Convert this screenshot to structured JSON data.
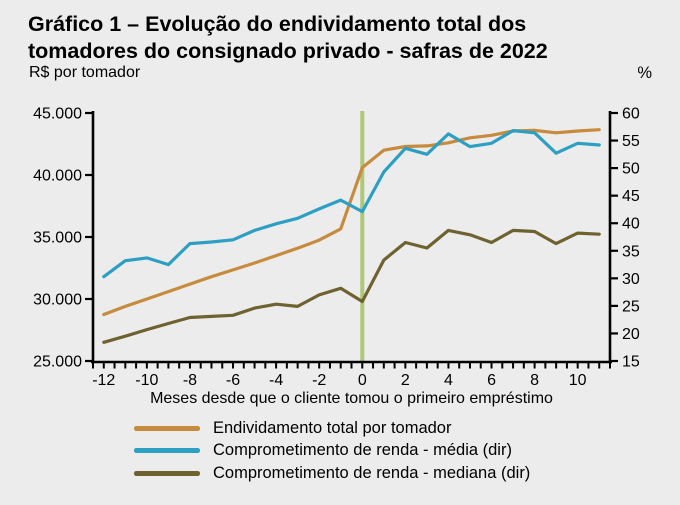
{
  "title_line1": "Gráfico 1 – Evolução do endividamento total dos",
  "title_line2": "tomadores do consignado privado - safras de 2022",
  "unit_left": "R$ por tomador",
  "unit_right": "%",
  "x_axis_title": "Meses desde que o cliente tomou o primeiro empréstimo",
  "colors": {
    "background": "#ececec",
    "axis": "#000000",
    "origin_line": "#acc878"
  },
  "chart_data": {
    "type": "line",
    "x": [
      -12,
      -11,
      -10,
      -9,
      -8,
      -7,
      -6,
      -5,
      -4,
      -3,
      -2,
      -1,
      0,
      1,
      2,
      3,
      4,
      5,
      6,
      7,
      8,
      9,
      10,
      11
    ],
    "series": [
      {
        "name": "Endividamento total por tomador",
        "axis": "left",
        "color": "#c78b3d",
        "values": [
          28750,
          29400,
          30000,
          30600,
          31200,
          31800,
          32350,
          32900,
          33500,
          34100,
          34750,
          35650,
          40600,
          42000,
          42300,
          42350,
          42600,
          43000,
          43200,
          43550,
          43600,
          43400,
          43550,
          43650
        ]
      },
      {
        "name": "Comprometimento de renda - média (dir)",
        "axis": "right",
        "color": "#2d9fc3",
        "values": [
          30.3,
          33.2,
          33.7,
          32.5,
          36.3,
          36.6,
          37.0,
          38.7,
          39.9,
          40.9,
          42.6,
          44.2,
          42.1,
          49.3,
          53.6,
          52.5,
          56.2,
          53.9,
          54.5,
          56.8,
          56.4,
          52.7,
          54.5,
          54.2
        ]
      },
      {
        "name": "Comprometimento de renda - mediana (dir)",
        "axis": "right",
        "color": "#6e6230",
        "values": [
          18.4,
          19.5,
          20.7,
          21.8,
          22.9,
          23.1,
          23.3,
          24.6,
          25.3,
          24.9,
          27.0,
          28.2,
          25.8,
          33.3,
          36.5,
          35.5,
          38.7,
          37.9,
          36.5,
          38.7,
          38.5,
          36.3,
          38.2,
          38.0
        ]
      }
    ],
    "left_axis": {
      "min": 25000,
      "max": 45000,
      "ticks": [
        25000,
        30000,
        35000,
        40000,
        45000
      ],
      "labels": [
        "25.000",
        "30.000",
        "35.000",
        "40.000",
        "45.000"
      ]
    },
    "right_axis": {
      "min": 15,
      "max": 60,
      "ticks": [
        15,
        20,
        25,
        30,
        35,
        40,
        45,
        50,
        55,
        60
      ],
      "labels": [
        "15",
        "20",
        "25",
        "30",
        "35",
        "40",
        "45",
        "50",
        "55",
        "60"
      ]
    },
    "x_axis": {
      "range": [
        -12.5,
        11.5
      ],
      "minor_step": 0.5,
      "label_ticks": [
        -12,
        -10,
        -8,
        -6,
        -4,
        -2,
        0,
        2,
        4,
        6,
        8,
        10
      ],
      "labels": [
        "-12",
        "-10",
        "-8",
        "-6",
        "-4",
        "-2",
        "0",
        "2",
        "4",
        "6",
        "8",
        "10"
      ]
    },
    "origin_vline_x": 0,
    "grid": false,
    "legend_position": "bottom-left"
  }
}
